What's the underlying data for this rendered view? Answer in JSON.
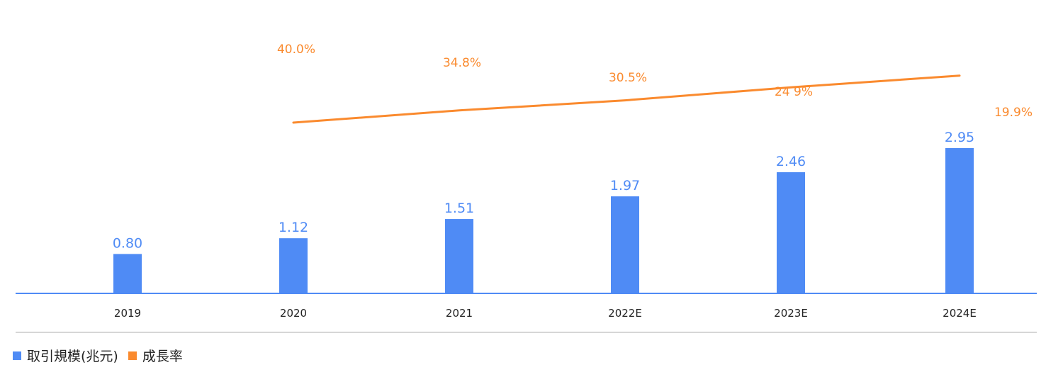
{
  "chart_data": {
    "type": "bar",
    "categories": [
      "2019",
      "2020",
      "2021",
      "2022E",
      "2023E",
      "2024E"
    ],
    "series": [
      {
        "name": "取引規模(兆元)",
        "type": "bar",
        "values": [
          0.8,
          1.12,
          1.51,
          1.97,
          2.46,
          2.95
        ],
        "labels": [
          "0.80",
          "1.12",
          "1.51",
          "1.97",
          "2.46",
          "2.95"
        ],
        "color": "#4f8bf5"
      },
      {
        "name": "成長率",
        "type": "line",
        "values": [
          null,
          40.0,
          34.8,
          30.5,
          24.9,
          19.9
        ],
        "labels": [
          "",
          "40.0%",
          "34.8%",
          "30.5%",
          "24 9%",
          "19.9%"
        ],
        "unit": "%",
        "color": "#fa8a2e"
      }
    ],
    "legend_position": "bottom-left",
    "grid": false,
    "axis_color": "#4f8bf5"
  }
}
